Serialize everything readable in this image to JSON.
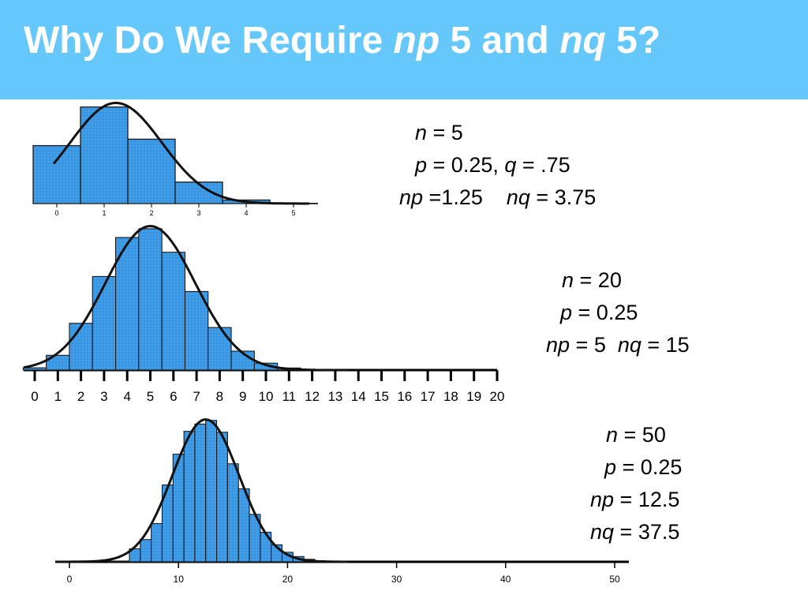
{
  "title": {
    "part1": "Why Do We Require ",
    "np": "np",
    "symbol1": "",
    "mid": " 5 and ",
    "nq": "nq",
    "symbol2": "",
    "end": " 5?"
  },
  "colors": {
    "header_bg": "#66c8fa",
    "bar_fill": "#3c9ae6",
    "bar_stroke": "#1a1a1a",
    "curve": "#111111",
    "title_text": "#ffffff"
  },
  "params": [
    {
      "lines": [
        {
          "segments": [
            {
              "text": "n",
              "italic": true
            },
            {
              "text": " = 5",
              "italic": false
            }
          ]
        },
        {
          "segments": [
            {
              "text": "p",
              "italic": true
            },
            {
              "text": " = 0.25, ",
              "italic": false
            },
            {
              "text": "q",
              "italic": true
            },
            {
              "text": " = .75",
              "italic": false
            }
          ]
        },
        {
          "segments": [
            {
              "text": "np",
              "italic": true
            },
            {
              "text": " =1.25    ",
              "italic": false
            },
            {
              "text": "nq",
              "italic": true
            },
            {
              "text": " = 3.75",
              "italic": false
            }
          ]
        }
      ]
    },
    {
      "lines": [
        {
          "segments": [
            {
              "text": "n",
              "italic": true
            },
            {
              "text": " = 20",
              "italic": false
            }
          ]
        },
        {
          "segments": [
            {
              "text": "p",
              "italic": true
            },
            {
              "text": " = 0.25",
              "italic": false
            }
          ]
        },
        {
          "segments": [
            {
              "text": "np",
              "italic": true
            },
            {
              "text": " = 5  ",
              "italic": false
            },
            {
              "text": "nq",
              "italic": true
            },
            {
              "text": " = 15",
              "italic": false
            }
          ]
        }
      ]
    },
    {
      "lines": [
        {
          "segments": [
            {
              "text": "n",
              "italic": true
            },
            {
              "text": " = 50",
              "italic": false
            }
          ]
        },
        {
          "segments": [
            {
              "text": "p",
              "italic": true
            },
            {
              "text": " = 0.25",
              "italic": false
            }
          ]
        },
        {
          "segments": [
            {
              "text": "np",
              "italic": true
            },
            {
              "text": " = 12.5",
              "italic": false
            }
          ]
        },
        {
          "segments": [
            {
              "text": "nq",
              "italic": true
            },
            {
              "text": " = 37.5",
              "italic": false
            }
          ]
        }
      ]
    }
  ],
  "chart_data": [
    {
      "type": "bar",
      "n": 5,
      "p": 0.25,
      "categories": [
        0,
        1,
        2,
        3,
        4,
        5
      ],
      "values": [
        0.2373,
        0.3955,
        0.2637,
        0.0879,
        0.0146,
        0.001
      ],
      "xticks": [
        0,
        1,
        2,
        3,
        4,
        5
      ],
      "xlim": [
        0,
        5
      ],
      "ylim": [
        0,
        0.42
      ],
      "overlay": "normal curve",
      "title": "",
      "xlabel": "",
      "ylabel": ""
    },
    {
      "type": "bar",
      "n": 20,
      "p": 0.25,
      "categories": [
        0,
        1,
        2,
        3,
        4,
        5,
        6,
        7,
        8,
        9,
        10,
        11,
        12,
        13,
        14,
        15,
        16,
        17,
        18,
        19,
        20
      ],
      "values": [
        0.0032,
        0.0211,
        0.0669,
        0.1339,
        0.1897,
        0.2023,
        0.1686,
        0.1124,
        0.0609,
        0.0271,
        0.0099,
        0.003,
        0.0008,
        0.0002,
        0,
        0,
        0,
        0,
        0,
        0,
        0
      ],
      "xticks": [
        0,
        1,
        2,
        3,
        4,
        5,
        6,
        7,
        8,
        9,
        10,
        11,
        12,
        13,
        14,
        15,
        16,
        17,
        18,
        19,
        20
      ],
      "xlim": [
        0,
        20
      ],
      "ylim": [
        0,
        0.21
      ],
      "overlay": "normal curve",
      "title": "",
      "xlabel": "",
      "ylabel": ""
    },
    {
      "type": "bar",
      "n": 50,
      "p": 0.25,
      "categories": [
        0,
        1,
        2,
        3,
        4,
        5,
        6,
        7,
        8,
        9,
        10,
        11,
        12,
        13,
        14,
        15,
        16,
        17,
        18,
        19,
        20,
        21,
        22,
        23,
        24,
        25
      ],
      "values": [
        0,
        0,
        0,
        0,
        0.0001,
        0.0004,
        0.0119,
        0.0204,
        0.035,
        0.0703,
        0.0985,
        0.1194,
        0.1261,
        0.1294,
        0.1186,
        0.0897,
        0.0668,
        0.0434,
        0.027,
        0.0155,
        0.0087,
        0.0048,
        0.0023,
        0.001,
        0.0004,
        0.0001
      ],
      "xticks": [
        0,
        10,
        20,
        30,
        40,
        50
      ],
      "xlim": [
        0,
        50
      ],
      "ylim": [
        0,
        0.13
      ],
      "overlay": "normal curve",
      "title": "",
      "xlabel": "",
      "ylabel": ""
    }
  ]
}
